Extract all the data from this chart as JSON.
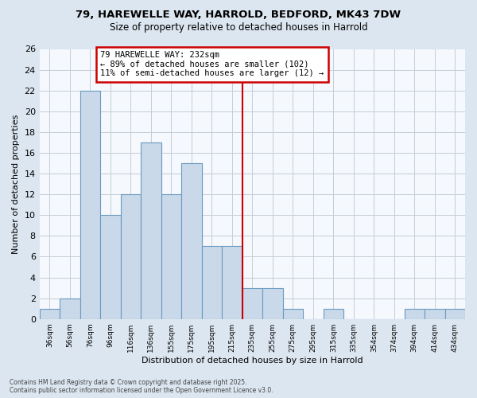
{
  "title_line1": "79, HAREWELLE WAY, HARROLD, BEDFORD, MK43 7DW",
  "title_line2": "Size of property relative to detached houses in Harrold",
  "xlabel": "Distribution of detached houses by size in Harrold",
  "ylabel": "Number of detached properties",
  "bar_color": "#c9d9ea",
  "bar_edge_color": "#6a9abf",
  "categories": [
    "36sqm",
    "56sqm",
    "76sqm",
    "96sqm",
    "116sqm",
    "136sqm",
    "155sqm",
    "175sqm",
    "195sqm",
    "215sqm",
    "235sqm",
    "255sqm",
    "275sqm",
    "295sqm",
    "315sqm",
    "335sqm",
    "354sqm",
    "374sqm",
    "394sqm",
    "414sqm",
    "434sqm"
  ],
  "values": [
    1,
    2,
    22,
    10,
    12,
    17,
    12,
    15,
    7,
    7,
    3,
    3,
    1,
    0,
    1,
    0,
    0,
    0,
    1,
    1,
    1
  ],
  "ylim_max": 26,
  "yticks": [
    0,
    2,
    4,
    6,
    8,
    10,
    12,
    14,
    16,
    18,
    20,
    22,
    24,
    26
  ],
  "vline_pos": 9.5,
  "vline_color": "#cc0000",
  "anno_line1": "79 HAREWELLE WAY: 232sqm",
  "anno_line2": "← 89% of detached houses are smaller (102)",
  "anno_line3": "11% of semi-detached houses are larger (12) →",
  "anno_edge_color": "#cc0000",
  "footer1": "Contains HM Land Registry data © Crown copyright and database right 2025.",
  "footer2": "Contains public sector information licensed under the Open Government Licence v3.0.",
  "bg_color": "#dce6f0",
  "plot_bg": "#f5f8fc",
  "grid_color": "#c5cdd6"
}
